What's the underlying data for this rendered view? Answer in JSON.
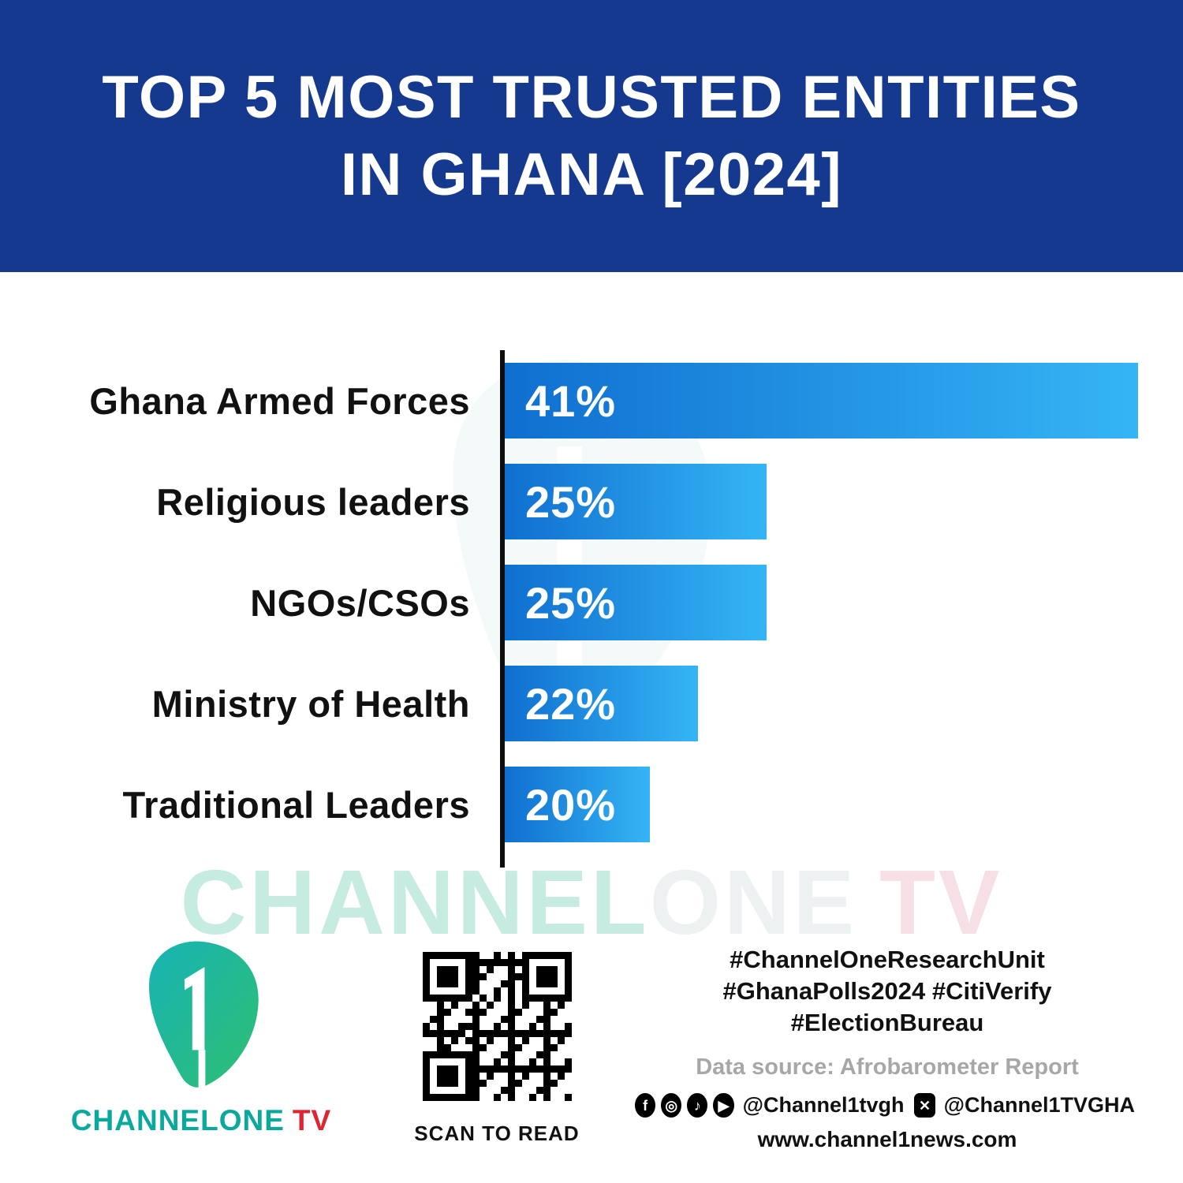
{
  "header": {
    "title_line1": "TOP 5 MOST TRUSTED ENTITIES",
    "title_line2": "IN GHANA [2024]"
  },
  "chart_data": {
    "type": "bar",
    "orientation": "horizontal",
    "title": "TOP 5 MOST TRUSTED ENTITIES IN GHANA [2024]",
    "categories": [
      "Ghana Armed Forces",
      "Religious leaders",
      "NGOs/CSOs",
      "Ministry of Health",
      "Traditional Leaders"
    ],
    "values": [
      41,
      25,
      25,
      22,
      20
    ],
    "value_labels": [
      "41%",
      "25%",
      "25%",
      "22%",
      "20%"
    ],
    "unit": "%",
    "xlim": [
      0,
      41
    ],
    "bar_display_pct": [
      100,
      41.4,
      41.4,
      30.5,
      22.9
    ],
    "bar_color_start": "#0f6fd0",
    "bar_color_end": "#35b5f5",
    "axis_color": "#0d0d0d",
    "grid": false,
    "legend": false,
    "source": "Afrobarometer Report"
  },
  "watermark": {
    "part1": "CHANNEL",
    "part2": "ONE",
    "part3": "TV"
  },
  "footer": {
    "logo_digit": "1",
    "brand_part1": "CHANNELONE",
    "brand_part2": "TV",
    "qr_caption": "SCAN TO READ",
    "hashtags_line1": "#ChannelOneResearchUnit",
    "hashtags_line2": "#GhanaPolls2024 #CitiVerify",
    "hashtags_line3": "#ElectionBureau",
    "data_source": "Data source: Afrobarometer Report",
    "social_handle1": "@Channel1tvgh",
    "social_handle2": "@Channel1TVGHA",
    "website": "www.channel1news.com",
    "social_icons": [
      "facebook-icon",
      "instagram-icon",
      "tiktok-icon",
      "youtube-icon",
      "x-icon"
    ]
  },
  "colors": {
    "header_blue": "#14398f",
    "brand_teal": "#0ba89d",
    "brand_red": "#e02430",
    "text_black": "#111111",
    "muted_gray": "#a7a7a7"
  }
}
